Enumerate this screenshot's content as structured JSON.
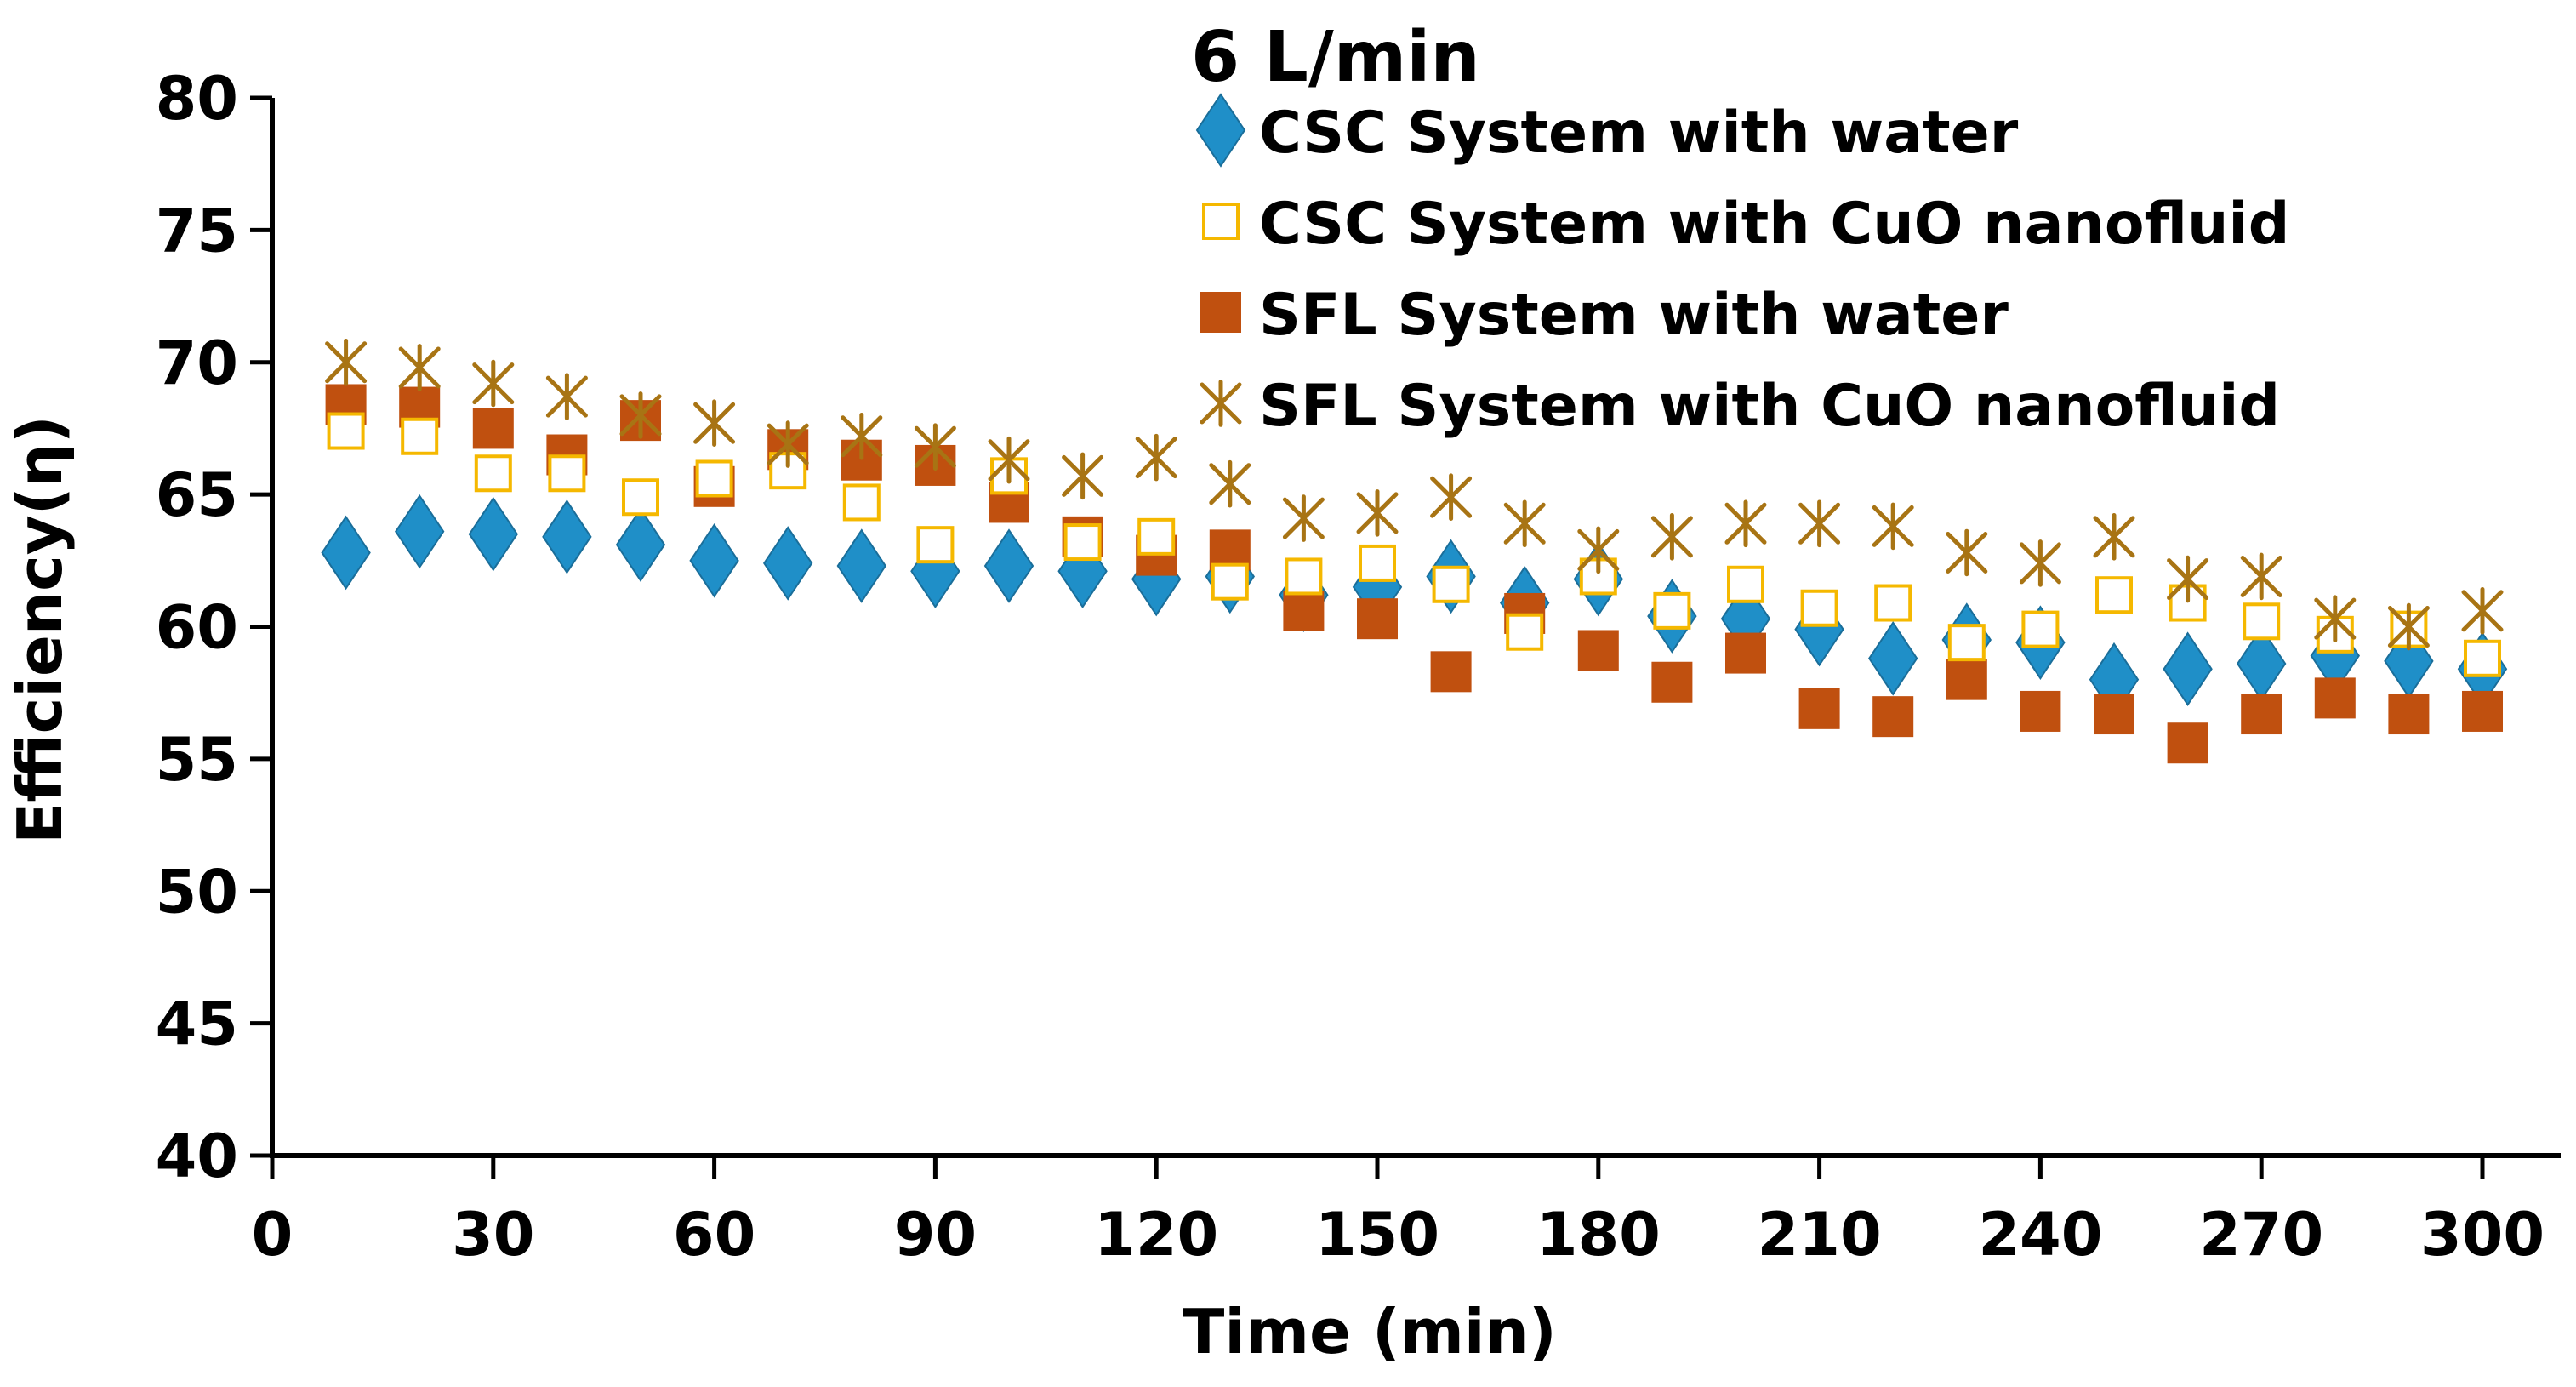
{
  "chart_data": {
    "type": "scatter",
    "title": "6 L/min",
    "xlabel": "Time (min)",
    "ylabel": "Efficiency(η)",
    "xlim": [
      0,
      310
    ],
    "ylim": [
      40,
      80
    ],
    "xticks": [
      0,
      30,
      60,
      90,
      120,
      150,
      180,
      210,
      240,
      270,
      300
    ],
    "yticks": [
      40,
      45,
      50,
      55,
      60,
      65,
      70,
      75,
      80
    ],
    "grid": false,
    "legend_position": "top-right",
    "x": [
      10,
      20,
      30,
      40,
      50,
      60,
      70,
      80,
      90,
      100,
      110,
      120,
      130,
      140,
      150,
      160,
      170,
      180,
      190,
      200,
      210,
      220,
      230,
      240,
      250,
      260,
      270,
      280,
      290,
      300
    ],
    "series": [
      {
        "name": "CSC System with water",
        "marker": "diamond",
        "color": "#1f8fc8",
        "values": [
          62.8,
          63.6,
          63.5,
          63.4,
          63.1,
          62.5,
          62.4,
          62.3,
          62.1,
          62.3,
          62.1,
          61.8,
          61.9,
          61.2,
          61.5,
          61.9,
          60.9,
          61.8,
          60.4,
          60.3,
          59.9,
          58.8,
          59.5,
          59.4,
          58.0,
          58.4,
          58.6,
          58.9,
          58.7,
          58.4
        ]
      },
      {
        "name": "CSC System with CuO nanofluid",
        "marker": "open-square",
        "color": "#f5b800",
        "values": [
          67.4,
          67.2,
          65.8,
          65.8,
          64.9,
          65.6,
          65.9,
          64.7,
          63.1,
          65.7,
          63.2,
          63.4,
          61.7,
          61.9,
          62.4,
          61.6,
          59.8,
          61.9,
          60.6,
          61.6,
          60.7,
          60.9,
          59.4,
          59.9,
          61.2,
          60.9,
          60.2,
          59.7,
          59.9,
          58.8
        ]
      },
      {
        "name": "SFL System  with water",
        "marker": "filled-square",
        "color": "#c0500f",
        "values": [
          68.4,
          68.3,
          67.5,
          66.5,
          67.8,
          65.3,
          66.7,
          66.3,
          66.1,
          64.7,
          63.4,
          62.7,
          62.9,
          60.6,
          60.3,
          58.3,
          60.5,
          59.1,
          57.9,
          59.0,
          56.9,
          56.6,
          58.0,
          56.8,
          56.7,
          55.6,
          56.7,
          57.3,
          56.7,
          56.8
        ]
      },
      {
        "name": "SFL System with CuO nanofluid",
        "marker": "star",
        "color": "#a87414",
        "values": [
          70.0,
          69.8,
          69.2,
          68.7,
          68.0,
          67.7,
          66.9,
          67.2,
          66.8,
          66.3,
          65.7,
          66.4,
          65.4,
          64.1,
          64.3,
          64.9,
          63.9,
          62.9,
          63.4,
          63.9,
          63.9,
          63.8,
          62.8,
          62.4,
          63.4,
          61.8,
          61.9,
          60.3,
          60.0,
          60.6
        ]
      }
    ]
  }
}
